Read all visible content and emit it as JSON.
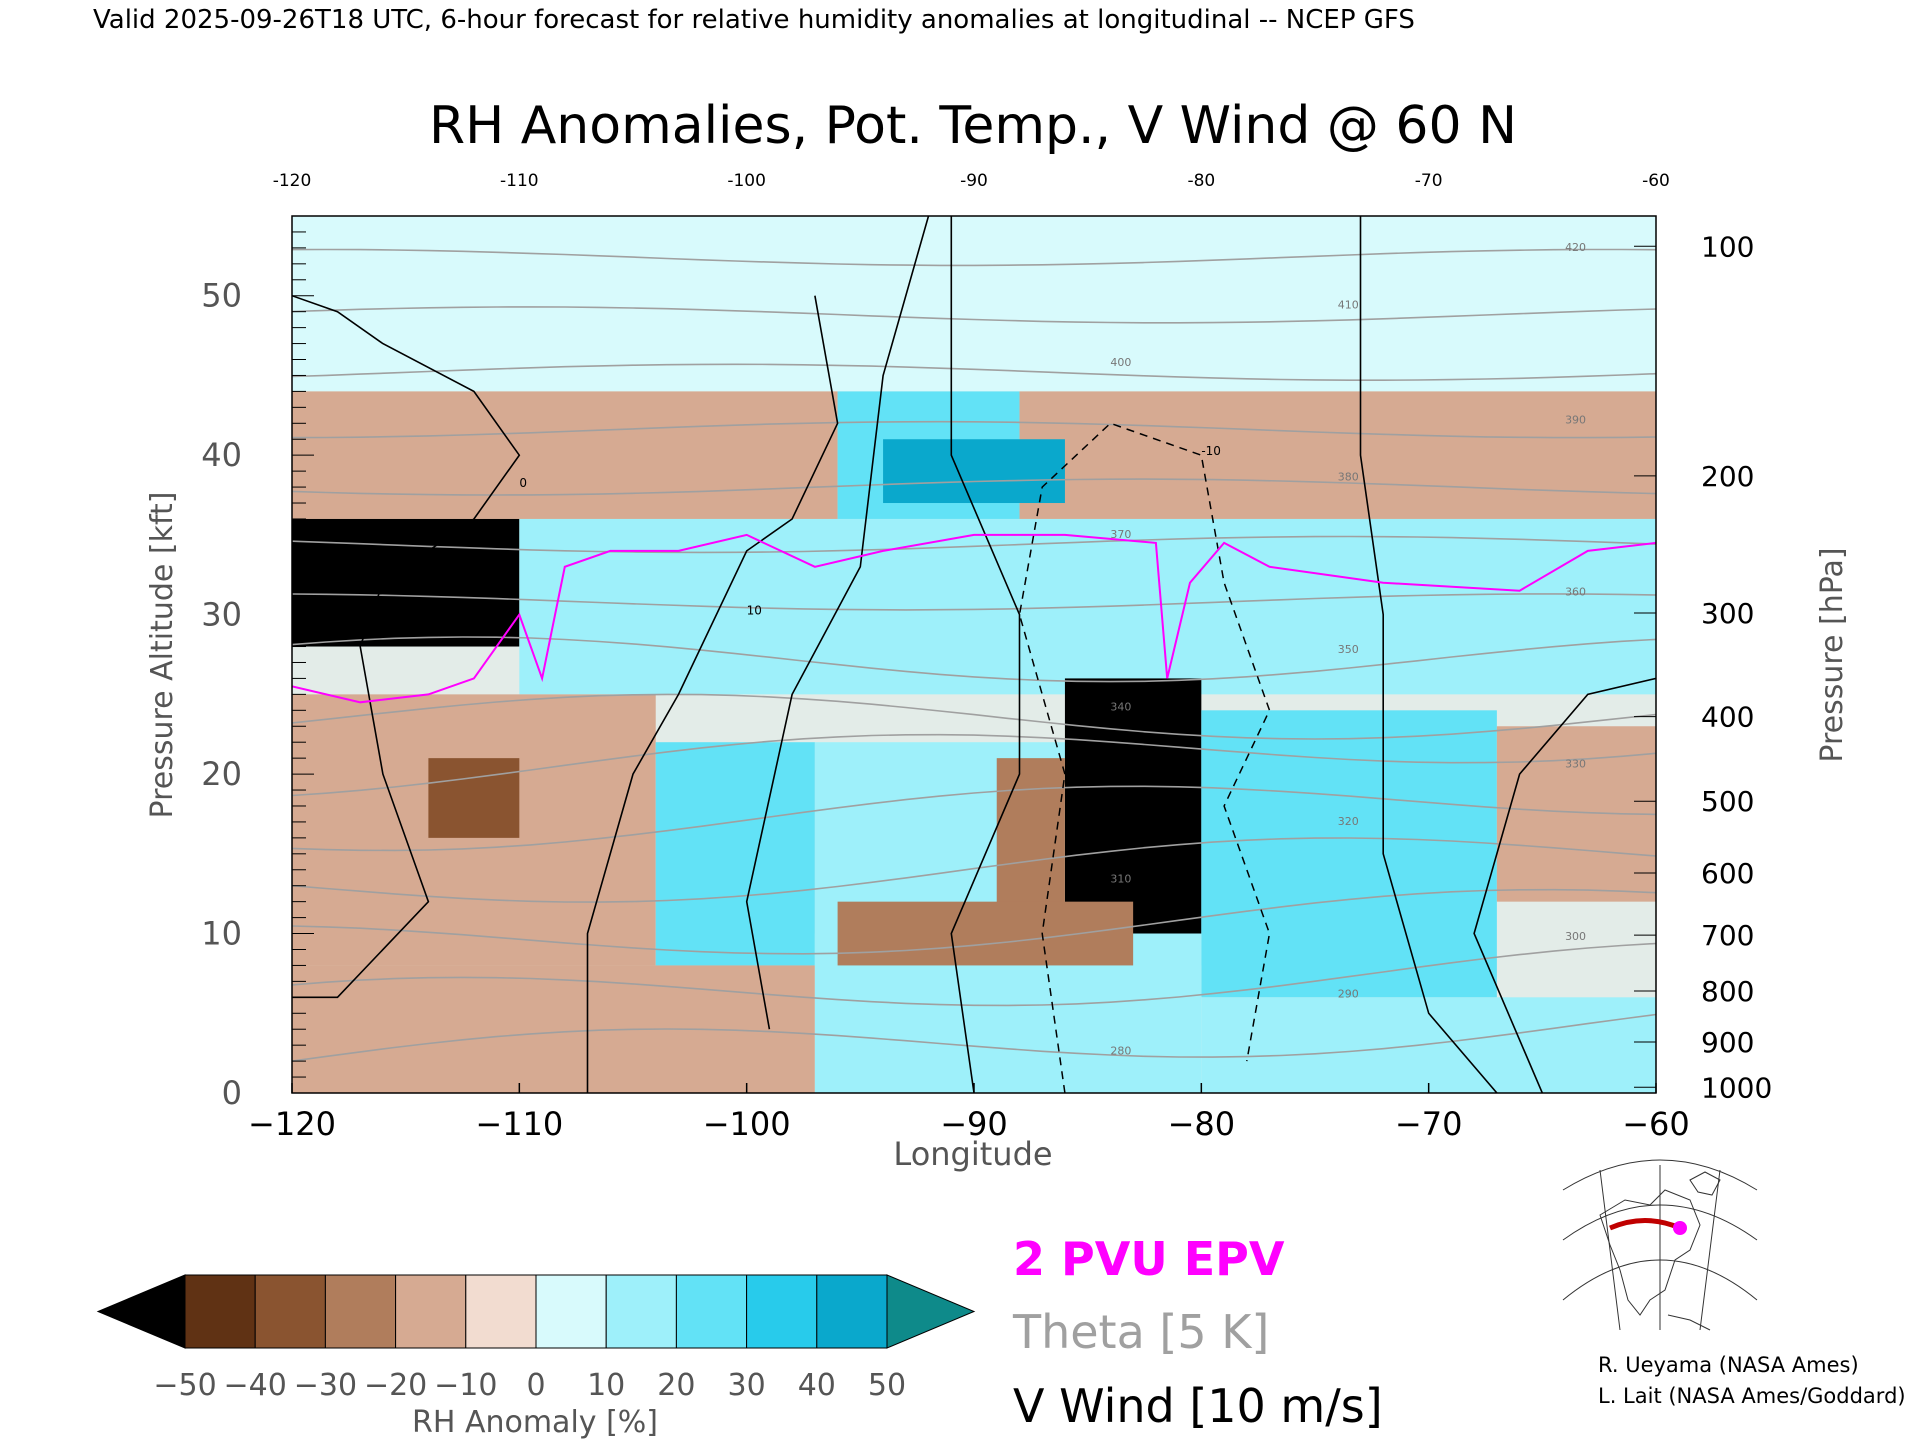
{
  "header": {
    "valid_line": "Valid 2025-09-26T18 UTC, 6-hour forecast for relative humidity anomalies at longitudinal -- NCEP GFS"
  },
  "chart_data": {
    "type": "heatmap",
    "title": "RH Anomalies, Pot. Temp., V Wind @ 60 N",
    "xlabel": "Longitude",
    "ylabel_left": "Pressure Altitude [kft]",
    "ylabel_right": "Pressure [hPa]",
    "xlim": [
      -120,
      -60
    ],
    "ylim": [
      0,
      55
    ],
    "x_ticks": [
      -120,
      -110,
      -100,
      -90,
      -80,
      -70,
      -60
    ],
    "y_ticks": [
      0,
      10,
      20,
      30,
      40,
      50
    ],
    "pressure_ticks": [
      {
        "hPa": 100,
        "kft": 53.1
      },
      {
        "hPa": 200,
        "kft": 38.7
      },
      {
        "hPa": 300,
        "kft": 30.1
      },
      {
        "hPa": 400,
        "kft": 23.6
      },
      {
        "hPa": 500,
        "kft": 18.3
      },
      {
        "hPa": 600,
        "kft": 13.8
      },
      {
        "hPa": 700,
        "kft": 9.9
      },
      {
        "hPa": 800,
        "kft": 6.4
      },
      {
        "hPa": 900,
        "kft": 3.2
      },
      {
        "hPa": 1000,
        "kft": 0.36
      }
    ],
    "regions": [
      {
        "lon": [
          -120,
          -60
        ],
        "kft": [
          44,
          55
        ],
        "anom": 0
      },
      {
        "lon": [
          -120,
          -96
        ],
        "kft": [
          36,
          44
        ],
        "anom": -20
      },
      {
        "lon": [
          -88,
          -60
        ],
        "kft": [
          36,
          44
        ],
        "anom": -20
      },
      {
        "lon": [
          -96,
          -88
        ],
        "kft": [
          36,
          44
        ],
        "anom": 20
      },
      {
        "lon": [
          -94,
          -86
        ],
        "kft": [
          37,
          41
        ],
        "anom": 45
      },
      {
        "lon": [
          -120,
          -110
        ],
        "kft": [
          28,
          36
        ],
        "anom": -50
      },
      {
        "lon": [
          -110,
          -60
        ],
        "kft": [
          25,
          36
        ],
        "anom": 15
      },
      {
        "lon": [
          -120,
          -104
        ],
        "kft": [
          8,
          25
        ],
        "anom": -20
      },
      {
        "lon": [
          -114,
          -110
        ],
        "kft": [
          16,
          21
        ],
        "anom": -40
      },
      {
        "lon": [
          -104,
          -97
        ],
        "kft": [
          8,
          22
        ],
        "anom": 25
      },
      {
        "lon": [
          -97,
          -80
        ],
        "kft": [
          8,
          22
        ],
        "anom": 15
      },
      {
        "lon": [
          -86,
          -80
        ],
        "kft": [
          10,
          26
        ],
        "anom": -50
      },
      {
        "lon": [
          -89,
          -86
        ],
        "kft": [
          10,
          21
        ],
        "anom": -30
      },
      {
        "lon": [
          -80,
          -67
        ],
        "kft": [
          6,
          24
        ],
        "anom": 25
      },
      {
        "lon": [
          -67,
          -60
        ],
        "kft": [
          12,
          23
        ],
        "anom": -20
      },
      {
        "lon": [
          -120,
          -97
        ],
        "kft": [
          0,
          8
        ],
        "anom": -20
      },
      {
        "lon": [
          -97,
          -80
        ],
        "kft": [
          0,
          10
        ],
        "anom": 10
      },
      {
        "lon": [
          -96,
          -83
        ],
        "kft": [
          8,
          12
        ],
        "anom": -30
      },
      {
        "lon": [
          -80,
          -60
        ],
        "kft": [
          0,
          6
        ],
        "anom": 15
      }
    ],
    "theta_labels": [
      "280",
      "290",
      "300",
      "310",
      "320",
      "330",
      "340",
      "350",
      "360",
      "370",
      "380",
      "390",
      "400",
      "410",
      "420"
    ],
    "vwind_labels": [
      "0",
      "10",
      "-10"
    ],
    "epv_line": [
      [
        -120,
        25.5
      ],
      [
        -117,
        24.5
      ],
      [
        -114,
        25
      ],
      [
        -112,
        26
      ],
      [
        -110,
        30
      ],
      [
        -109,
        26
      ],
      [
        -108,
        33
      ],
      [
        -106,
        34
      ],
      [
        -103,
        34
      ],
      [
        -100,
        35
      ],
      [
        -97,
        33
      ],
      [
        -94,
        34
      ],
      [
        -90,
        35
      ],
      [
        -86,
        35
      ],
      [
        -82,
        34.5
      ],
      [
        -81.5,
        26
      ],
      [
        -80.5,
        32
      ],
      [
        -79,
        34.5
      ],
      [
        -77,
        33
      ],
      [
        -72,
        32
      ],
      [
        -66,
        31.5
      ],
      [
        -63,
        34
      ],
      [
        -60,
        34.5
      ]
    ],
    "colorbar": {
      "label": "RH Anomaly [%]",
      "ticks": [
        "-50",
        "-40",
        "-30",
        "-20",
        "-10",
        "0",
        "10",
        "20",
        "30",
        "40",
        "50"
      ],
      "colors": [
        "#3c1a08",
        "#603214",
        "#8a5430",
        "#b07d5c",
        "#d6aa92",
        "#f2dcd0",
        "#d8fafc",
        "#9ef0fa",
        "#62e2f6",
        "#28cbeb",
        "#0aa8cc",
        "#087e9c"
      ],
      "under_color": "#000000",
      "over_color": "#0e8a8a"
    },
    "legend": {
      "epv": "2 PVU EPV",
      "theta": "Theta [5 K]",
      "vwind": "V Wind [10 m/s]",
      "epv_color": "#ff00ff",
      "theta_color": "#a0a0a0",
      "vwind_color": "#000000"
    }
  },
  "credits": {
    "line1": "R. Ueyama (NASA Ames)",
    "line2": "L. Lait (NASA Ames/Goddard)"
  }
}
